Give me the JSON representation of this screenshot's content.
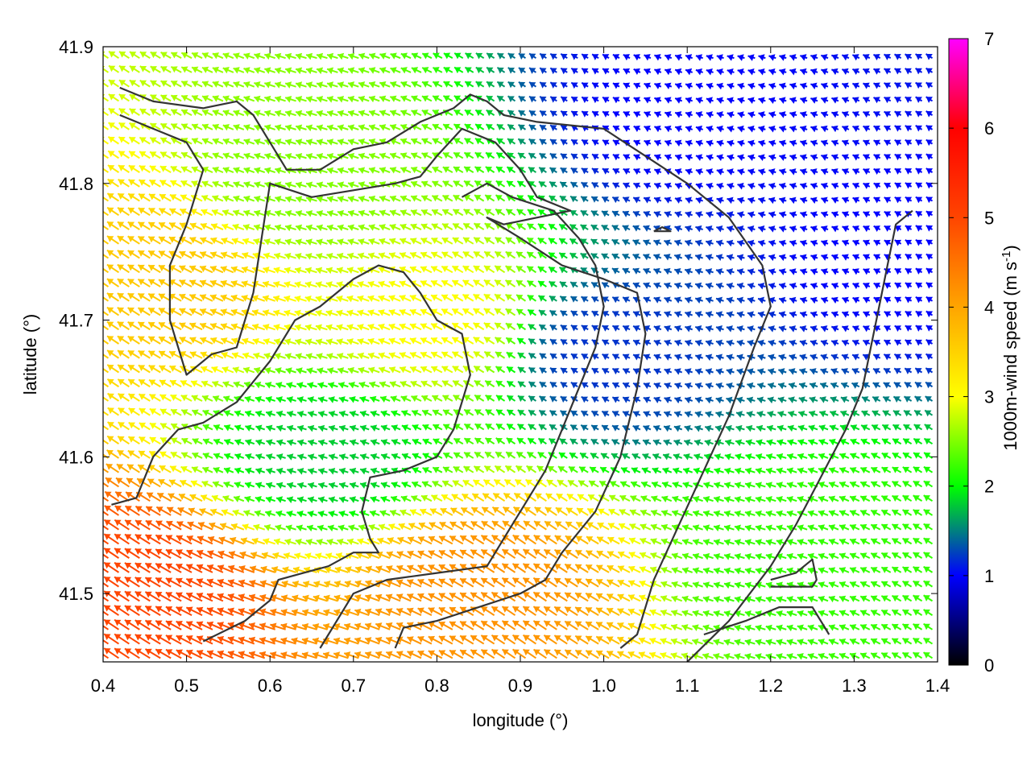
{
  "chart_data": {
    "type": "quiver",
    "title": "",
    "xlabel": "longitude (°)",
    "ylabel": "latitude (°)",
    "xlim": [
      0.4,
      1.4
    ],
    "ylim": [
      41.45,
      41.9
    ],
    "xticks": [
      "0.4",
      "0.5",
      "0.6",
      "0.7",
      "0.8",
      "0.9",
      "1.0",
      "1.1",
      "1.2",
      "1.3",
      "1.4"
    ],
    "yticks": [
      "41.5",
      "41.6",
      "41.7",
      "41.8",
      "41.9"
    ],
    "colorbar": {
      "label": "1000m-wind speed (m s-1)",
      "label_main": "1000m-wind speed (m s",
      "label_sup": "-1",
      "label_end": ")",
      "range": [
        0,
        7
      ],
      "ticks": [
        "0",
        "1",
        "2",
        "3",
        "4",
        "5",
        "6",
        "7"
      ],
      "colormap": [
        {
          "value": 0,
          "color": "#000000"
        },
        {
          "value": 1,
          "color": "#0000ff"
        },
        {
          "value": 2,
          "color": "#00ff00"
        },
        {
          "value": 3,
          "color": "#ffff00"
        },
        {
          "value": 4,
          "color": "#ffa500"
        },
        {
          "value": 5,
          "color": "#ff4500"
        },
        {
          "value": 6,
          "color": "#ff0000"
        },
        {
          "value": 7,
          "color": "#ff00ff"
        }
      ]
    },
    "wind_field_note_free": true,
    "wind_direction_dominant": "from east-southeast toward west-northwest",
    "speed_regions": [
      {
        "lon": [
          0.4,
          0.5
        ],
        "lat": [
          41.45,
          41.55
        ],
        "speed": 5.0
      },
      {
        "lon": [
          0.4,
          0.55
        ],
        "lat": [
          41.55,
          41.9
        ],
        "speed": 3.6
      },
      {
        "lon": [
          0.55,
          0.75
        ],
        "lat": [
          41.7,
          41.9
        ],
        "speed": 2.5
      },
      {
        "lon": [
          0.6,
          0.75
        ],
        "lat": [
          41.55,
          41.65
        ],
        "speed": 1.8
      },
      {
        "lon": [
          0.7,
          0.9
        ],
        "lat": [
          41.6,
          41.8
        ],
        "speed": 3.0
      },
      {
        "lon": [
          0.75,
          0.95
        ],
        "lat": [
          41.45,
          41.55
        ],
        "speed": 4.2
      },
      {
        "lon": [
          0.97,
          1.05
        ],
        "lat": [
          41.6,
          41.75
        ],
        "speed": 1.2
      },
      {
        "lon": [
          1.05,
          1.15
        ],
        "lat": [
          41.8,
          41.9
        ],
        "speed": 1.0
      },
      {
        "lon": [
          1.3,
          1.4
        ],
        "lat": [
          41.6,
          41.9
        ],
        "speed": 1.0
      },
      {
        "lon": [
          1.15,
          1.35
        ],
        "lat": [
          41.45,
          41.6
        ],
        "speed": 2.2
      }
    ],
    "contours": [
      [
        [
          0.42,
          41.87
        ],
        [
          0.46,
          41.86
        ],
        [
          0.52,
          41.855
        ],
        [
          0.56,
          41.86
        ],
        [
          0.58,
          41.85
        ],
        [
          0.6,
          41.83
        ],
        [
          0.62,
          41.81
        ],
        [
          0.66,
          41.81
        ],
        [
          0.7,
          41.825
        ],
        [
          0.74,
          41.83
        ],
        [
          0.78,
          41.845
        ],
        [
          0.82,
          41.855
        ],
        [
          0.84,
          41.865
        ],
        [
          0.86,
          41.86
        ],
        [
          0.88,
          41.85
        ],
        [
          0.92,
          41.845
        ],
        [
          1.0,
          41.84
        ],
        [
          1.05,
          41.82
        ],
        [
          1.1,
          41.8
        ],
        [
          1.15,
          41.775
        ],
        [
          1.19,
          41.74
        ],
        [
          1.2,
          41.71
        ],
        [
          1.18,
          41.68
        ],
        [
          1.15,
          41.63
        ],
        [
          1.12,
          41.59
        ],
        [
          1.09,
          41.55
        ],
        [
          1.06,
          41.51
        ],
        [
          1.04,
          41.47
        ],
        [
          1.02,
          41.46
        ]
      ],
      [
        [
          0.42,
          41.85
        ],
        [
          0.46,
          41.84
        ],
        [
          0.5,
          41.83
        ],
        [
          0.52,
          41.81
        ],
        [
          0.5,
          41.77
        ],
        [
          0.48,
          41.74
        ],
        [
          0.48,
          41.7
        ],
        [
          0.5,
          41.66
        ],
        [
          0.53,
          41.675
        ],
        [
          0.56,
          41.68
        ],
        [
          0.58,
          41.72
        ],
        [
          0.59,
          41.76
        ],
        [
          0.6,
          41.8
        ],
        [
          0.65,
          41.79
        ],
        [
          0.7,
          41.795
        ],
        [
          0.75,
          41.8
        ],
        [
          0.78,
          41.805
        ],
        [
          0.8,
          41.82
        ],
        [
          0.83,
          41.84
        ],
        [
          0.87,
          41.83
        ],
        [
          0.9,
          41.81
        ],
        [
          0.92,
          41.79
        ],
        [
          0.96,
          41.78
        ],
        [
          0.88,
          41.77
        ],
        [
          0.86,
          41.775
        ],
        [
          0.9,
          41.76
        ],
        [
          0.95,
          41.74
        ],
        [
          1.0,
          41.73
        ],
        [
          1.04,
          41.72
        ],
        [
          1.05,
          41.69
        ],
        [
          1.04,
          41.65
        ],
        [
          1.02,
          41.6
        ],
        [
          0.99,
          41.56
        ],
        [
          0.95,
          41.53
        ],
        [
          0.93,
          41.51
        ],
        [
          0.9,
          41.5
        ],
        [
          0.85,
          41.49
        ],
        [
          0.8,
          41.48
        ],
        [
          0.76,
          41.475
        ],
        [
          0.75,
          41.46
        ]
      ],
      [
        [
          0.41,
          41.565
        ],
        [
          0.44,
          41.57
        ],
        [
          0.46,
          41.6
        ],
        [
          0.49,
          41.62
        ],
        [
          0.52,
          41.625
        ],
        [
          0.56,
          41.64
        ],
        [
          0.6,
          41.67
        ],
        [
          0.63,
          41.7
        ],
        [
          0.66,
          41.71
        ],
        [
          0.7,
          41.73
        ],
        [
          0.73,
          41.74
        ],
        [
          0.76,
          41.735
        ],
        [
          0.78,
          41.72
        ],
        [
          0.8,
          41.7
        ],
        [
          0.83,
          41.69
        ],
        [
          0.84,
          41.66
        ],
        [
          0.82,
          41.62
        ],
        [
          0.8,
          41.6
        ],
        [
          0.76,
          41.59
        ],
        [
          0.72,
          41.585
        ],
        [
          0.71,
          41.56
        ],
        [
          0.72,
          41.54
        ],
        [
          0.73,
          41.53
        ],
        [
          0.7,
          41.53
        ],
        [
          0.67,
          41.52
        ],
        [
          0.64,
          41.515
        ],
        [
          0.61,
          41.51
        ],
        [
          0.6,
          41.495
        ],
        [
          0.57,
          41.48
        ],
        [
          0.52,
          41.465
        ]
      ],
      [
        [
          0.66,
          41.46
        ],
        [
          0.7,
          41.5
        ],
        [
          0.74,
          41.51
        ],
        [
          0.8,
          41.515
        ],
        [
          0.86,
          41.52
        ],
        [
          0.89,
          41.55
        ],
        [
          0.91,
          41.57
        ],
        [
          0.93,
          41.59
        ],
        [
          0.95,
          41.62
        ],
        [
          0.97,
          41.65
        ],
        [
          0.99,
          41.68
        ],
        [
          1.0,
          41.71
        ],
        [
          0.99,
          41.74
        ],
        [
          0.97,
          41.76
        ],
        [
          0.94,
          41.78
        ],
        [
          0.89,
          41.79
        ],
        [
          0.86,
          41.8
        ],
        [
          0.83,
          41.79
        ]
      ],
      [
        [
          1.1,
          41.45
        ],
        [
          1.15,
          41.48
        ],
        [
          1.2,
          41.52
        ],
        [
          1.23,
          41.55
        ],
        [
          1.26,
          41.585
        ],
        [
          1.29,
          41.62
        ],
        [
          1.31,
          41.65
        ],
        [
          1.32,
          41.68
        ],
        [
          1.33,
          41.71
        ],
        [
          1.34,
          41.74
        ],
        [
          1.35,
          41.77
        ],
        [
          1.37,
          41.78
        ]
      ],
      [
        [
          1.2,
          41.51
        ],
        [
          1.23,
          41.515
        ],
        [
          1.25,
          41.525
        ],
        [
          1.255,
          41.51
        ],
        [
          1.25,
          41.505
        ],
        [
          1.2,
          41.505
        ]
      ],
      [
        [
          1.06,
          41.765
        ],
        [
          1.08,
          41.765
        ],
        [
          1.07,
          41.768
        ],
        [
          1.06,
          41.765
        ]
      ],
      [
        [
          1.12,
          41.47
        ],
        [
          1.17,
          41.48
        ],
        [
          1.21,
          41.49
        ],
        [
          1.25,
          41.49
        ],
        [
          1.26,
          41.48
        ],
        [
          1.27,
          41.47
        ]
      ]
    ]
  }
}
